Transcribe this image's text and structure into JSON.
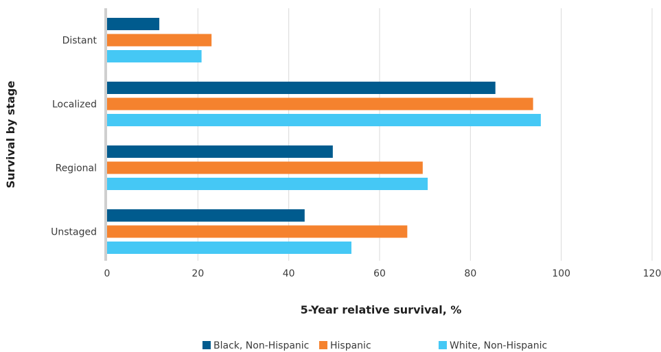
{
  "chart_data": {
    "type": "bar",
    "orientation": "horizontal",
    "categories": [
      "Distant",
      "Localized",
      "Regional",
      "Unstaged"
    ],
    "series": [
      {
        "name": "Black, Non-Hispanic",
        "color": "#005b8e",
        "values": [
          11.5,
          85.5,
          49.7,
          43.5
        ]
      },
      {
        "name": "Hispanic",
        "color": "#f5822e",
        "values": [
          23,
          93.8,
          69.5,
          66.1
        ]
      },
      {
        "name": "White, Non-Hispanic",
        "color": "#45c8f5",
        "values": [
          20.8,
          95.5,
          70.6,
          53.8
        ]
      }
    ],
    "xlabel": "5-Year relative survival, %",
    "ylabel": "Survival by stage",
    "xlim": [
      0,
      120
    ],
    "xticks": [
      0,
      20,
      40,
      60,
      80,
      100,
      120
    ],
    "grid": true,
    "legend_position": "bottom"
  }
}
